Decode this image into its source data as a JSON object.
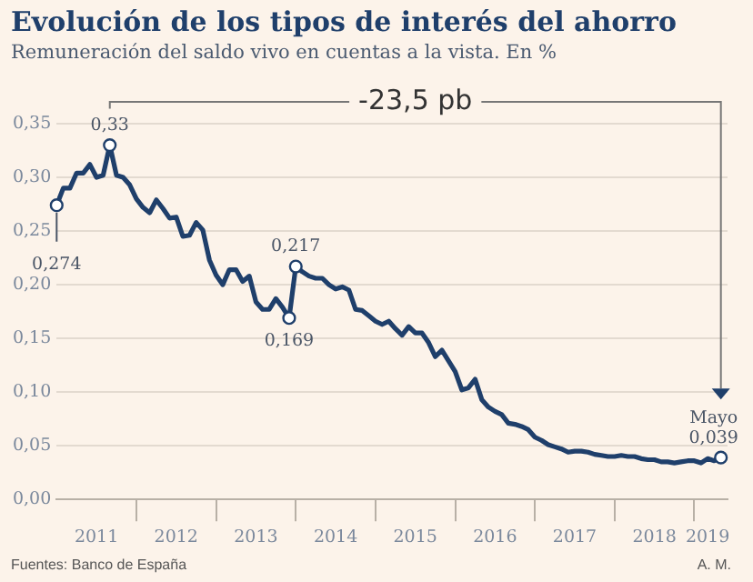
{
  "chart_data": {
    "type": "line",
    "title": "Evolución de los tipos de interés del ahorro",
    "subtitle": "Remuneración del saldo vivo en cuentas a la vista. En %",
    "x": [
      "2011-01",
      "2011-02",
      "2011-03",
      "2011-04",
      "2011-05",
      "2011-06",
      "2011-07",
      "2011-08",
      "2011-09",
      "2011-10",
      "2011-11",
      "2011-12",
      "2012-01",
      "2012-02",
      "2012-03",
      "2012-04",
      "2012-05",
      "2012-06",
      "2012-07",
      "2012-08",
      "2012-09",
      "2012-10",
      "2012-11",
      "2012-12",
      "2013-01",
      "2013-02",
      "2013-03",
      "2013-04",
      "2013-05",
      "2013-06",
      "2013-07",
      "2013-08",
      "2013-09",
      "2013-10",
      "2013-11",
      "2013-12",
      "2014-01",
      "2014-02",
      "2014-03",
      "2014-04",
      "2014-05",
      "2014-06",
      "2014-07",
      "2014-08",
      "2014-09",
      "2014-10",
      "2014-11",
      "2014-12",
      "2015-01",
      "2015-02",
      "2015-03",
      "2015-04",
      "2015-05",
      "2015-06",
      "2015-07",
      "2015-08",
      "2015-09",
      "2015-10",
      "2015-11",
      "2015-12",
      "2016-01",
      "2016-02",
      "2016-03",
      "2016-04",
      "2016-05",
      "2016-06",
      "2016-07",
      "2016-08",
      "2016-09",
      "2016-10",
      "2016-11",
      "2016-12",
      "2017-01",
      "2017-02",
      "2017-03",
      "2017-04",
      "2017-05",
      "2017-06",
      "2017-07",
      "2017-08",
      "2017-09",
      "2017-10",
      "2017-11",
      "2017-12",
      "2018-01",
      "2018-02",
      "2018-03",
      "2018-04",
      "2018-05",
      "2018-06",
      "2018-07",
      "2018-08",
      "2018-09",
      "2018-10",
      "2018-11",
      "2018-12",
      "2019-01",
      "2019-02",
      "2019-03",
      "2019-04",
      "2019-05"
    ],
    "series": [
      {
        "color": "#1f3f6b",
        "values": [
          0.274,
          0.29,
          0.29,
          0.304,
          0.304,
          0.312,
          0.3,
          0.302,
          0.33,
          0.302,
          0.3,
          0.293,
          0.28,
          0.272,
          0.267,
          0.279,
          0.271,
          0.262,
          0.263,
          0.245,
          0.246,
          0.258,
          0.251,
          0.223,
          0.209,
          0.2,
          0.214,
          0.214,
          0.203,
          0.208,
          0.184,
          0.177,
          0.177,
          0.187,
          0.179,
          0.169,
          0.217,
          0.212,
          0.208,
          0.206,
          0.206,
          0.2,
          0.196,
          0.198,
          0.195,
          0.177,
          0.176,
          0.171,
          0.166,
          0.163,
          0.166,
          0.159,
          0.153,
          0.161,
          0.155,
          0.155,
          0.146,
          0.133,
          0.139,
          0.129,
          0.119,
          0.102,
          0.104,
          0.112,
          0.093,
          0.086,
          0.082,
          0.079,
          0.071,
          0.07,
          0.068,
          0.065,
          0.058,
          0.055,
          0.051,
          0.049,
          0.047,
          0.044,
          0.045,
          0.045,
          0.044,
          0.042,
          0.041,
          0.04,
          0.04,
          0.041,
          0.04,
          0.04,
          0.038,
          0.037,
          0.037,
          0.035,
          0.035,
          0.034,
          0.035,
          0.036,
          0.036,
          0.034,
          0.038,
          0.036,
          0.039
        ]
      }
    ],
    "xlim": [
      "2011-01",
      "2019-06"
    ],
    "xticks": [
      {
        "value": "2011-07",
        "label": "2011"
      },
      {
        "value": "2012-01",
        "label": null
      },
      {
        "value": "2012-07",
        "label": "2012"
      },
      {
        "value": "2013-01",
        "label": null
      },
      {
        "value": "2013-07",
        "label": "2013"
      },
      {
        "value": "2014-01",
        "label": null
      },
      {
        "value": "2014-07",
        "label": "2014"
      },
      {
        "value": "2015-01",
        "label": null
      },
      {
        "value": "2015-07",
        "label": "2015"
      },
      {
        "value": "2016-01",
        "label": null
      },
      {
        "value": "2016-07",
        "label": "2016"
      },
      {
        "value": "2017-01",
        "label": null
      },
      {
        "value": "2017-07",
        "label": "2017"
      },
      {
        "value": "2018-01",
        "label": null
      },
      {
        "value": "2018-07",
        "label": "2018"
      },
      {
        "value": "2019-01",
        "label": null
      },
      {
        "value": "2019-03",
        "label": "2019"
      }
    ],
    "ylim": [
      0,
      0.35
    ],
    "yticks": [
      {
        "value": 0,
        "label": "0,00"
      },
      {
        "value": 0.05,
        "label": "0,05"
      },
      {
        "value": 0.1,
        "label": "0,10"
      },
      {
        "value": 0.15,
        "label": "0,15"
      },
      {
        "value": 0.2,
        "label": "0,20"
      },
      {
        "value": 0.25,
        "label": "0,25"
      },
      {
        "value": 0.3,
        "label": "0,30"
      },
      {
        "value": 0.35,
        "label": "0,35"
      }
    ],
    "grid": "y",
    "legend": false,
    "marker": "none",
    "line_style": "solid",
    "annotations": [
      {
        "text": "0,274",
        "x": "2011-01",
        "y": 0.274
      },
      {
        "text": "0,33",
        "x": "2011-09",
        "y": 0.33
      },
      {
        "text": "0,169",
        "x": "2013-12",
        "y": 0.169
      },
      {
        "text": "0,217",
        "x": "2014-01",
        "y": 0.217
      },
      {
        "text": "Mayo\n0,039",
        "x": "2019-05",
        "y": 0.039
      },
      "-23,5 pb",
      "Fuentes: Banco de España",
      "A. M."
    ]
  }
}
